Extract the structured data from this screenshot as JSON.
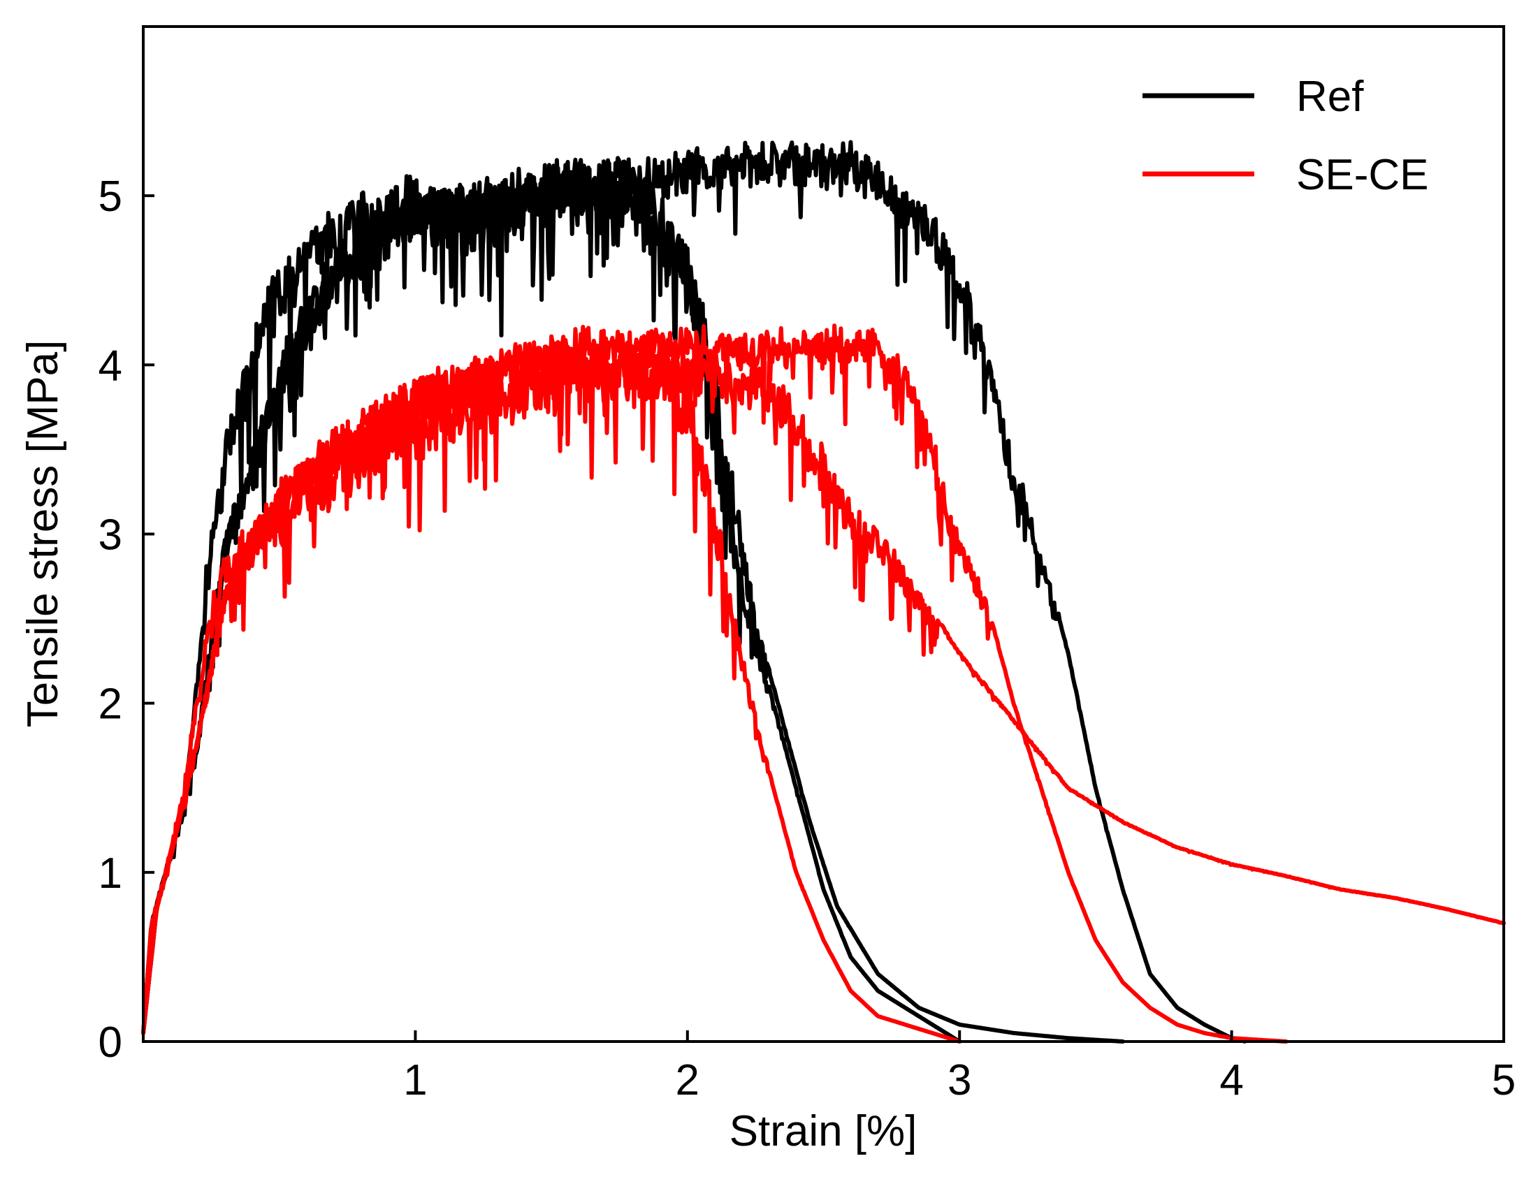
{
  "chart_data": {
    "type": "line",
    "title": "",
    "xlabel": "Strain [%]",
    "ylabel": "Tensile stress [MPa]",
    "xlim": [
      0,
      5
    ],
    "ylim": [
      0,
      6
    ],
    "x_ticks": [
      1,
      2,
      3,
      4,
      5
    ],
    "y_ticks": [
      0,
      1,
      2,
      3,
      4,
      5
    ],
    "grid": false,
    "legend_position": "top-right",
    "series": [
      {
        "name": "Ref",
        "color": "#000000",
        "show_in_legend": true,
        "noise": 0.32,
        "x": [
          0,
          0.03,
          0.08,
          0.15,
          0.2,
          0.25,
          0.3,
          0.4,
          0.5,
          0.6,
          0.7,
          0.8,
          0.9,
          1.0,
          1.2,
          1.4,
          1.6,
          1.8,
          1.9,
          2.0,
          2.05,
          2.1,
          2.2,
          2.3,
          2.4,
          2.5,
          2.6,
          2.7,
          2.8,
          2.9,
          3.0
        ],
        "y": [
          0.05,
          0.7,
          1.0,
          1.4,
          2.2,
          3.1,
          3.6,
          4.2,
          4.6,
          4.8,
          4.9,
          5.0,
          5.0,
          5.1,
          5.0,
          5.1,
          5.2,
          5.2,
          5.0,
          4.7,
          4.3,
          3.8,
          2.8,
          2.1,
          1.5,
          0.9,
          0.5,
          0.3,
          0.2,
          0.1,
          0.0
        ]
      },
      {
        "name": "Ref",
        "color": "#000000",
        "show_in_legend": false,
        "noise": 0.28,
        "x": [
          0,
          0.05,
          0.1,
          0.2,
          0.3,
          0.5,
          0.7,
          0.9,
          1.0,
          1.2,
          1.4,
          1.6,
          1.8,
          1.95,
          2.05,
          2.1,
          2.15,
          2.25,
          2.35,
          2.45,
          2.55,
          2.7,
          2.85,
          3.0,
          3.2,
          3.4,
          3.6
        ],
        "y": [
          0.05,
          0.8,
          1.1,
          1.8,
          3.0,
          4.1,
          4.7,
          5.0,
          5.1,
          5.0,
          5.1,
          5.2,
          5.1,
          4.8,
          4.4,
          4.0,
          3.5,
          2.5,
          1.9,
          1.3,
          0.8,
          0.4,
          0.2,
          0.1,
          0.05,
          0.02,
          0.0
        ]
      },
      {
        "name": "Ref",
        "color": "#000000",
        "show_in_legend": false,
        "noise": 0.22,
        "x": [
          0,
          0.05,
          0.1,
          0.2,
          0.3,
          0.5,
          0.7,
          1.0,
          1.3,
          1.6,
          1.9,
          2.1,
          2.3,
          2.5,
          2.6,
          2.7,
          2.8,
          2.9,
          3.0,
          3.05,
          3.1,
          3.2,
          3.25,
          3.3,
          3.4,
          3.5,
          3.6,
          3.7,
          3.8,
          3.9,
          4.0,
          4.05
        ],
        "y": [
          0.05,
          0.8,
          1.1,
          1.8,
          3.0,
          4.0,
          4.6,
          5.0,
          5.1,
          5.2,
          5.2,
          5.3,
          5.3,
          5.3,
          5.3,
          5.2,
          5.0,
          4.9,
          4.6,
          4.4,
          4.1,
          3.4,
          3.2,
          2.9,
          2.3,
          1.5,
          0.9,
          0.4,
          0.2,
          0.1,
          0.02,
          0.0
        ]
      },
      {
        "name": "SE-CE",
        "color": "#ff0000",
        "show_in_legend": true,
        "noise": 0.3,
        "x": [
          0,
          0.03,
          0.08,
          0.15,
          0.2,
          0.25,
          0.3,
          0.4,
          0.5,
          0.6,
          0.8,
          1.0,
          1.2,
          1.4,
          1.6,
          1.8,
          1.9,
          2.0,
          2.05,
          2.1,
          2.2,
          2.3,
          2.4,
          2.5,
          2.6,
          2.7,
          2.8,
          2.9,
          3.0
        ],
        "y": [
          0.05,
          0.7,
          1.0,
          1.5,
          2.1,
          2.6,
          2.9,
          3.1,
          3.2,
          3.4,
          3.6,
          3.8,
          3.9,
          4.0,
          4.1,
          4.1,
          4.1,
          3.9,
          3.6,
          3.2,
          2.3,
          1.6,
          1.0,
          0.6,
          0.3,
          0.15,
          0.1,
          0.05,
          0.0
        ]
      },
      {
        "name": "SE-CE",
        "color": "#ff0000",
        "show_in_legend": false,
        "noise": 0.25,
        "x": [
          0,
          0.05,
          0.1,
          0.2,
          0.3,
          0.5,
          0.7,
          1.0,
          1.2,
          1.4,
          1.6,
          1.8,
          2.0,
          2.2,
          2.3,
          2.4,
          2.5,
          2.55,
          2.6,
          2.8,
          3.0,
          3.2,
          3.4,
          3.6,
          3.8,
          4.0,
          4.2,
          4.4,
          4.6,
          4.8,
          5.0
        ],
        "y": [
          0.05,
          0.8,
          1.1,
          1.8,
          2.7,
          3.3,
          3.6,
          3.9,
          4.0,
          4.1,
          4.1,
          4.1,
          4.1,
          4.0,
          4.0,
          3.8,
          3.5,
          3.3,
          3.2,
          2.8,
          2.3,
          1.9,
          1.5,
          1.3,
          1.15,
          1.05,
          0.98,
          0.9,
          0.85,
          0.78,
          0.7
        ]
      },
      {
        "name": "SE-CE",
        "color": "#ff0000",
        "show_in_legend": false,
        "noise": 0.2,
        "x": [
          0,
          0.05,
          0.1,
          0.2,
          0.3,
          0.5,
          0.7,
          1.0,
          1.3,
          1.6,
          1.9,
          2.1,
          2.3,
          2.5,
          2.7,
          2.8,
          2.9,
          2.95,
          3.0,
          3.1,
          3.2,
          3.3,
          3.4,
          3.5,
          3.6,
          3.7,
          3.8,
          3.9,
          4.0,
          4.2
        ],
        "y": [
          0.05,
          0.8,
          1.1,
          1.8,
          2.7,
          3.3,
          3.6,
          3.9,
          4.1,
          4.2,
          4.2,
          4.2,
          4.2,
          4.2,
          4.2,
          4.0,
          3.6,
          3.2,
          3.0,
          2.6,
          2.0,
          1.5,
          1.0,
          0.6,
          0.35,
          0.2,
          0.1,
          0.05,
          0.02,
          0.0
        ]
      }
    ]
  }
}
